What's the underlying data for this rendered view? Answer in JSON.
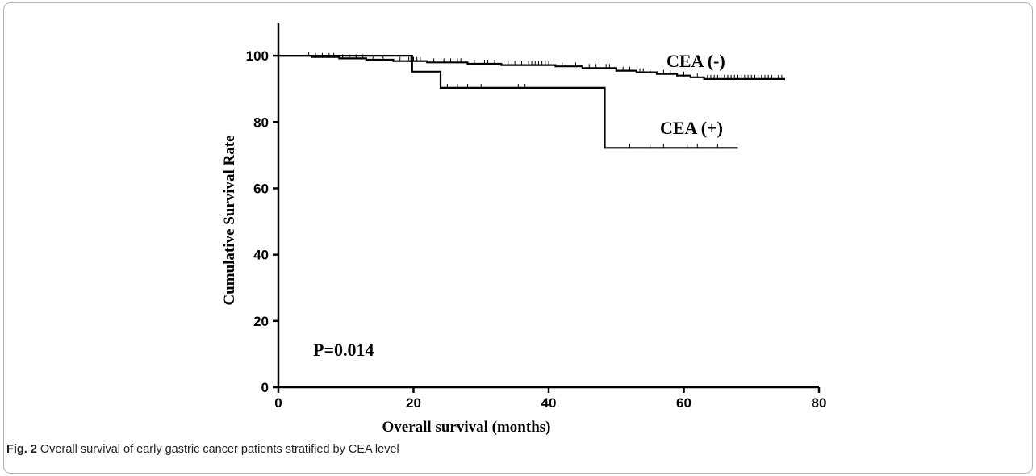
{
  "caption": {
    "label": "Fig. 2",
    "text": "Overall survival of early gastric cancer patients stratified by CEA level"
  },
  "chart_data": {
    "type": "line",
    "step": true,
    "title": "",
    "xlabel": "Overall survival (months)",
    "ylabel": "Cumulative Survival Rate",
    "xlim": [
      0,
      80
    ],
    "ylim": [
      0,
      110
    ],
    "xticks": [
      0,
      20,
      40,
      60,
      80
    ],
    "yticks": [
      0,
      20,
      40,
      60,
      80,
      100
    ],
    "grid": false,
    "legend": "inline labels",
    "annotation": "P=0.014",
    "series": [
      {
        "name": "CEA (-)",
        "steps": [
          [
            0,
            100
          ],
          [
            5,
            99.6
          ],
          [
            9,
            99.2
          ],
          [
            13,
            98.8
          ],
          [
            17,
            98.4
          ],
          [
            22,
            98
          ],
          [
            28,
            97.6
          ],
          [
            33,
            97.2
          ],
          [
            41,
            96.8
          ],
          [
            45,
            96.3
          ],
          [
            50,
            95.5
          ],
          [
            53,
            95
          ],
          [
            56,
            94.5
          ],
          [
            59,
            94
          ],
          [
            61,
            93.5
          ],
          [
            63,
            93
          ],
          [
            75,
            93
          ]
        ],
        "censored": [
          4.5,
          5.5,
          6.5,
          7.5,
          8.2,
          9.5,
          10.5,
          11.5,
          12.5,
          14,
          15.5,
          18,
          19.3,
          19.6,
          20,
          20.5,
          21,
          23,
          24.5,
          25.5,
          26.5,
          27,
          29,
          30.5,
          31,
          32,
          34,
          35,
          36,
          37,
          37.5,
          38,
          38.5,
          39,
          39.5,
          40,
          42,
          44,
          46,
          47,
          48.5,
          49,
          51,
          52,
          53.5,
          54,
          55,
          57,
          58,
          60,
          62,
          63.5,
          64,
          64.5,
          65,
          65.5,
          66,
          66.5,
          67,
          67.5,
          68,
          68.5,
          69,
          69.5,
          70,
          70.5,
          71,
          71.5,
          72,
          72.5,
          73,
          73.5,
          74,
          74.5
        ]
      },
      {
        "name": "CEA (+)",
        "steps": [
          [
            0,
            100
          ],
          [
            19.8,
            100
          ],
          [
            19.8,
            95.2
          ],
          [
            24,
            95.2
          ],
          [
            24,
            90.3
          ],
          [
            48.3,
            90.3
          ],
          [
            48.3,
            72.2
          ],
          [
            68,
            72.2
          ]
        ],
        "censored": [
          25,
          26.5,
          28,
          30,
          35.5,
          36.5,
          52,
          55,
          57,
          60.5,
          62,
          65
        ]
      }
    ]
  }
}
